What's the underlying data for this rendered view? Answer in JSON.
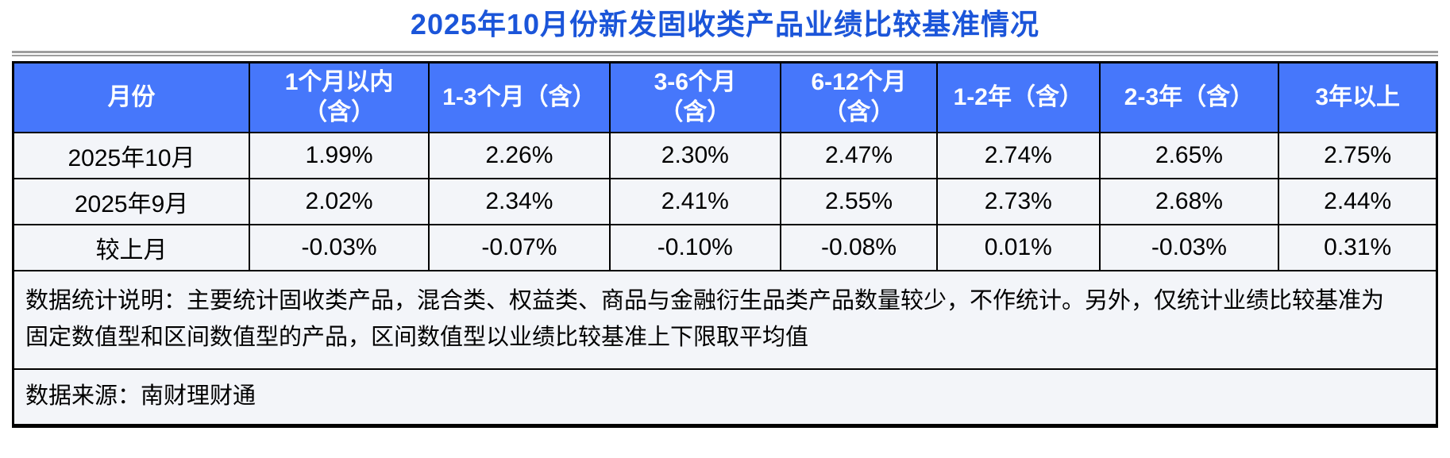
{
  "title": "2025年10月份新发固收类产品业绩比较基准情况",
  "colors": {
    "title_text": "#1B55D9",
    "header_bg": "#4677FB",
    "header_text": "#FFFFFF",
    "cell_bg": "#F3F5F9",
    "table_border": "#000000",
    "divider": "#9D9D9D"
  },
  "table": {
    "headers": [
      "月份",
      "1个月以内\n（含）",
      "1-3个月（含）",
      "3-6个月\n（含）",
      "6-12个月\n（含）",
      "1-2年（含）",
      "2-3年（含）",
      "3年以上"
    ],
    "rows": [
      {
        "label": "2025年10月",
        "values": [
          "1.99%",
          "2.26%",
          "2.30%",
          "2.47%",
          "2.74%",
          "2.65%",
          "2.75%"
        ]
      },
      {
        "label": "2025年9月",
        "values": [
          "2.02%",
          "2.34%",
          "2.41%",
          "2.55%",
          "2.73%",
          "2.68%",
          "2.44%"
        ]
      },
      {
        "label": "较上月",
        "values": [
          "-0.03%",
          "-0.07%",
          "-0.10%",
          "-0.08%",
          "0.01%",
          "-0.03%",
          "0.31%"
        ]
      }
    ],
    "note": "数据统计说明：主要统计固收类产品，混合类、权益类、商品与金融衍生品类产品数量较少，不作统计。另外，仅统计业绩比较基准为\n固定数值型和区间数值型的产品，区间数值型以业绩比较基准上下限取平均值",
    "source": "数据来源：南财理财通"
  },
  "chart_data": {
    "type": "table",
    "title": "2025年10月份新发固收类产品业绩比较基准情况",
    "categories": [
      "1个月以内（含）",
      "1-3个月（含）",
      "3-6个月（含）",
      "6-12个月（含）",
      "1-2年（含）",
      "2-3年（含）",
      "3年以上"
    ],
    "series": [
      {
        "name": "2025年10月",
        "values": [
          1.99,
          2.26,
          2.3,
          2.47,
          2.74,
          2.65,
          2.75
        ]
      },
      {
        "name": "2025年9月",
        "values": [
          2.02,
          2.34,
          2.41,
          2.55,
          2.73,
          2.68,
          2.44
        ]
      },
      {
        "name": "较上月",
        "values": [
          -0.03,
          -0.07,
          -0.1,
          -0.08,
          0.01,
          -0.03,
          0.31
        ]
      }
    ],
    "unit": "%",
    "note": "数据统计说明：主要统计固收类产品，混合类、权益类、商品与金融衍生品类产品数量较少，不作统计。另外，仅统计业绩比较基准为固定数值型和区间数值型的产品，区间数值型以业绩比较基准上下限取平均值",
    "source": "数据来源：南财理财通"
  }
}
